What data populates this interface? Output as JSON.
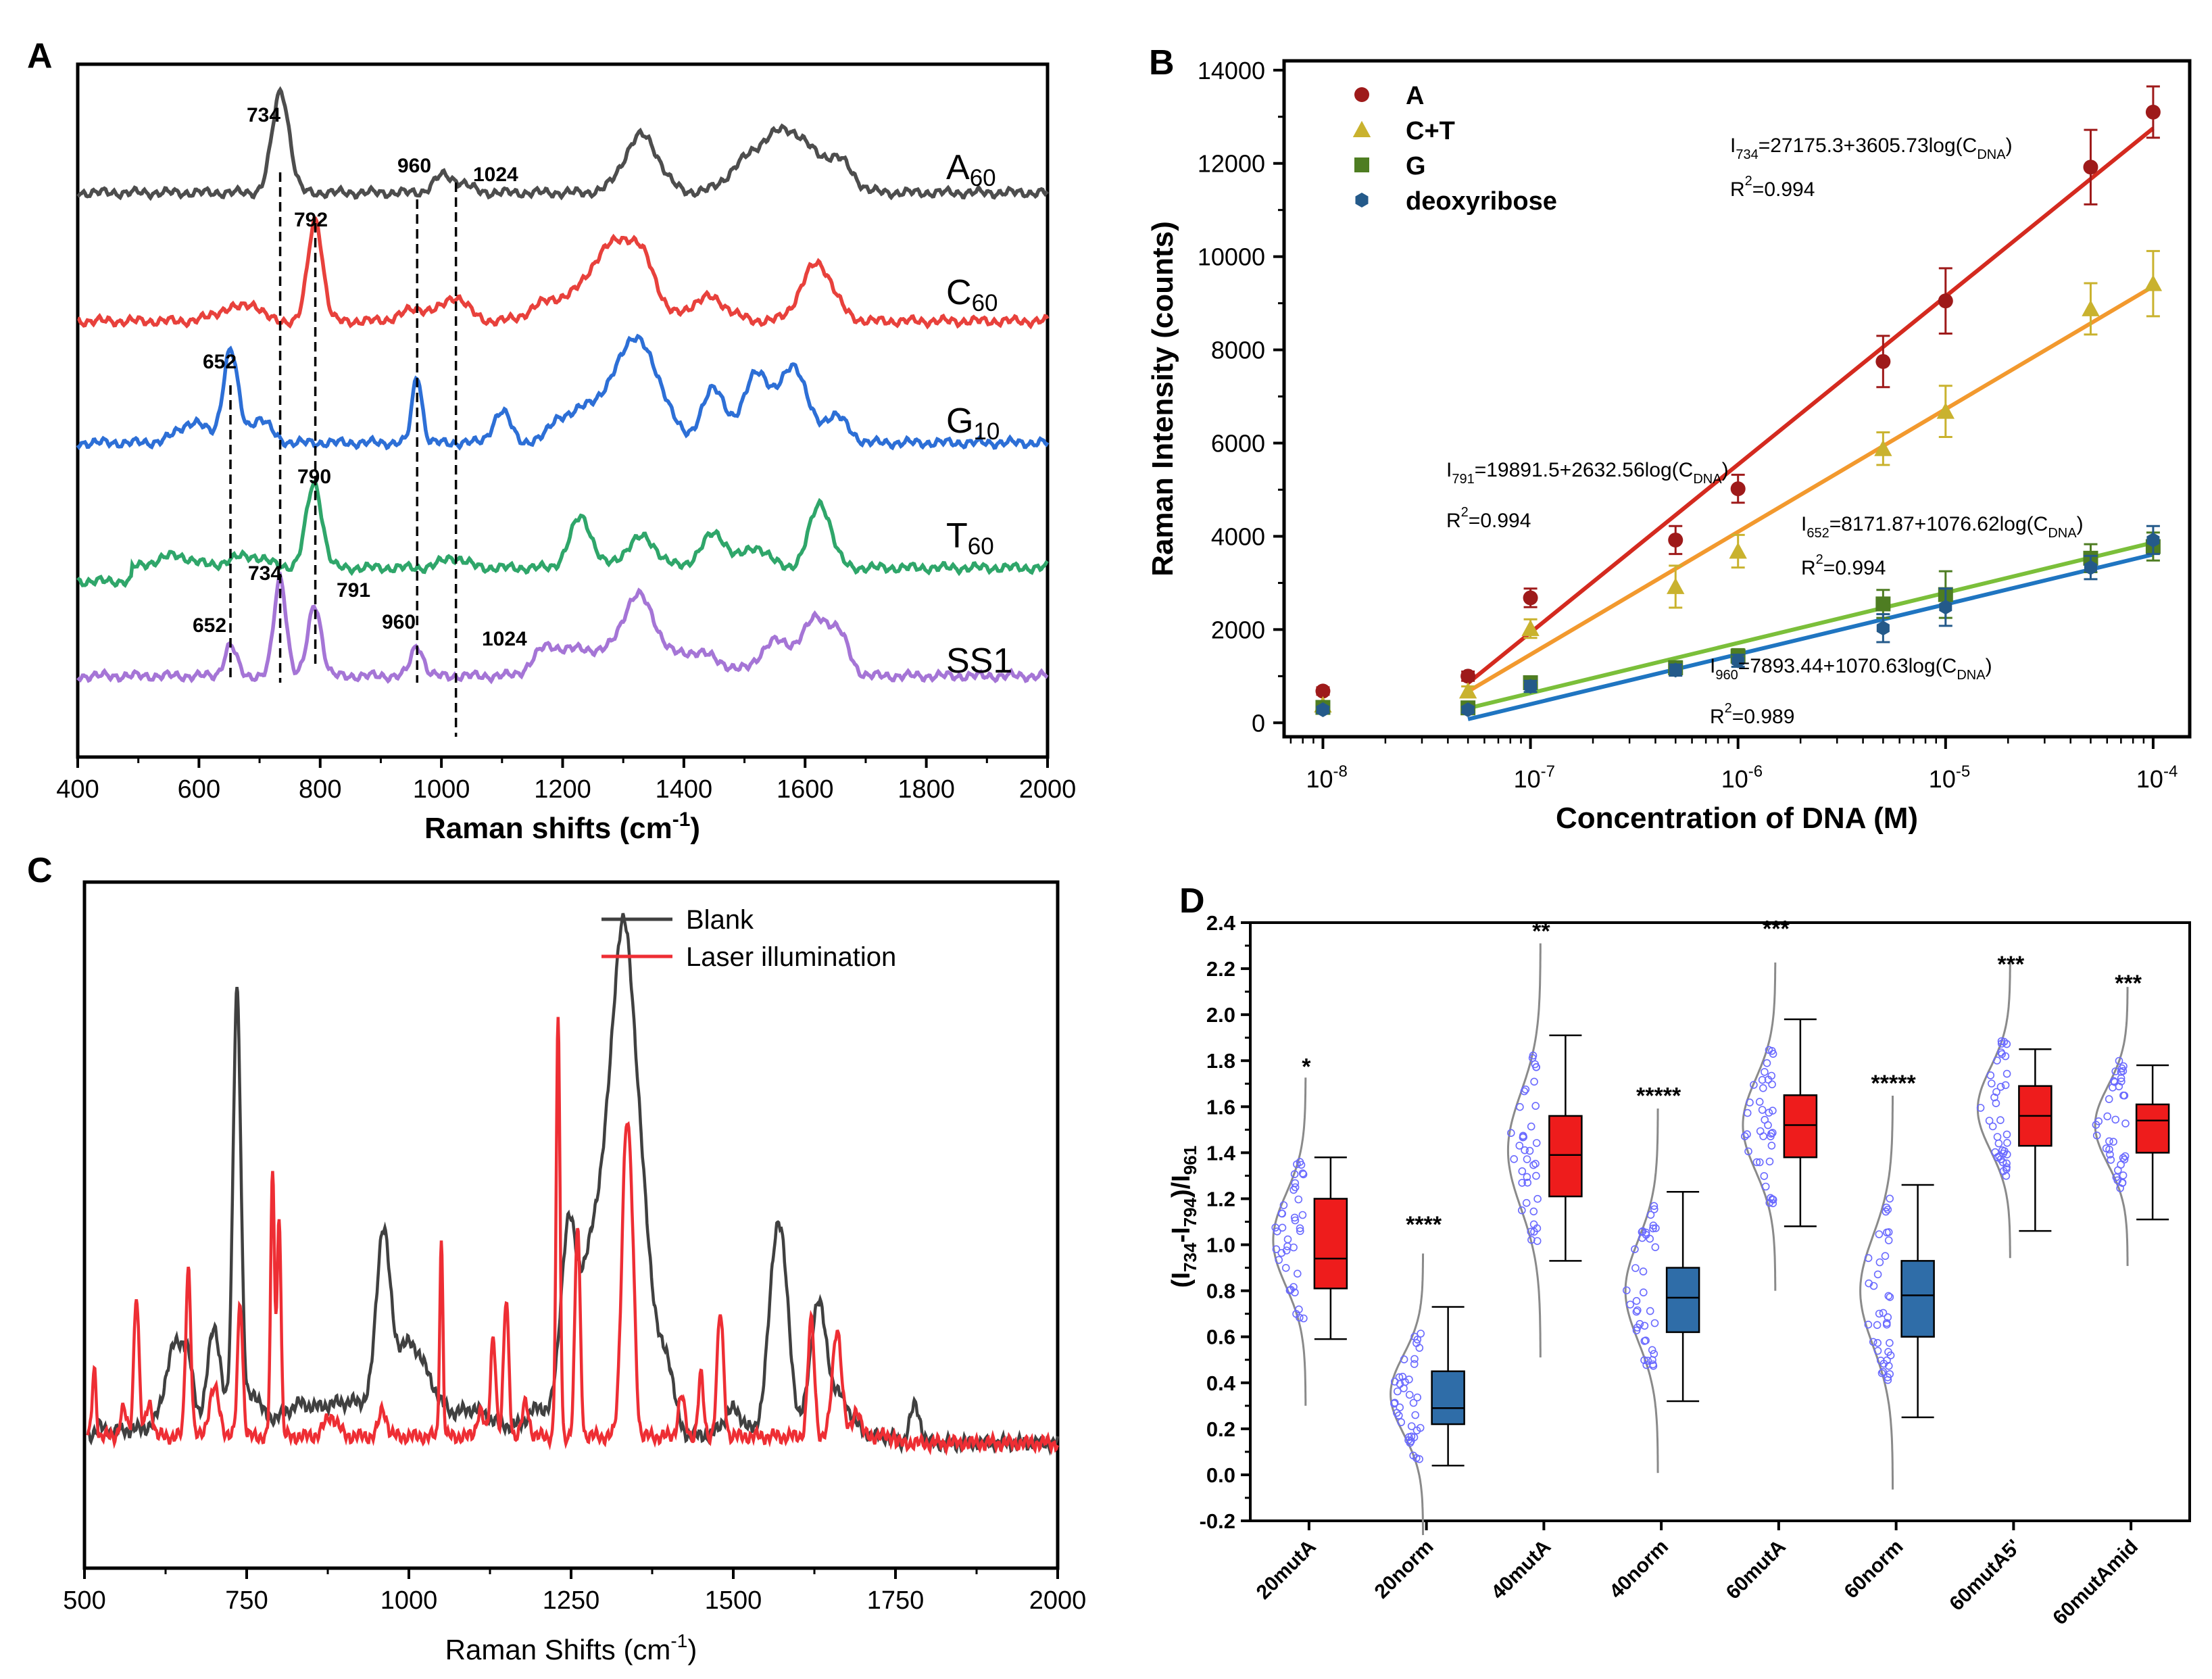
{
  "panels": {
    "A": {
      "letter": "A",
      "xlabel": "Raman shifts (cm",
      "xlabel_sup": "-1",
      "xlabel_end": ")",
      "xlim": [
        400,
        2000
      ],
      "xticks": [
        400,
        600,
        800,
        1000,
        1200,
        1400,
        1600,
        1800,
        2000
      ],
      "spectra": [
        {
          "name": "A",
          "sub": "60",
          "color": "#4d4d4d"
        },
        {
          "name": "C",
          "sub": "60",
          "color": "#e8413c"
        },
        {
          "name": "G",
          "sub": "10",
          "color": "#2d6fd6"
        },
        {
          "name": "T",
          "sub": "60",
          "color": "#2fa66a"
        },
        {
          "name": "SS1",
          "sub": "",
          "color": "#a575d6"
        }
      ],
      "peak_labels": [
        "734",
        "960",
        "1024",
        "792",
        "652",
        "790",
        "734",
        "791",
        "652",
        "960",
        "1024"
      ]
    },
    "B": {
      "letter": "B",
      "xlabel": "Concentration of DNA (M)",
      "ylabel": "Raman Intensity (counts)",
      "yticks": [
        0,
        2000,
        4000,
        6000,
        8000,
        10000,
        12000,
        14000
      ],
      "xtick_base": "10",
      "xtick_exps": [
        "-8",
        "-7",
        "-6",
        "-5",
        "-4"
      ],
      "legend": [
        {
          "name": "A",
          "color": "#9e1a1a",
          "marker": "circle"
        },
        {
          "name": "C+T",
          "color": "#c9b22e",
          "marker": "triangle"
        },
        {
          "name": "G",
          "color": "#4e7d22",
          "marker": "square"
        },
        {
          "name": "deoxyribose",
          "color": "#245a8a",
          "marker": "hexagon"
        }
      ],
      "fit_colors": [
        "#d42a1f",
        "#f2992e",
        "#7bbf3a",
        "#1f75c1"
      ],
      "equations": [
        {
          "pre": "I",
          "sub": "734",
          "mid": "=27175.3+3605.73log(C",
          "sub2": "DNA",
          "end": ")",
          "r2": "=0.994"
        },
        {
          "pre": "I",
          "sub": "791",
          "mid": "=19891.5+2632.56log(C",
          "sub2": "DNA",
          "end": ")",
          "r2": "=0.994"
        },
        {
          "pre": "I",
          "sub": "652",
          "mid": "=8171.87+1076.62log(C",
          "sub2": "DNA",
          "end": ")",
          "r2": "=0.994"
        },
        {
          "pre": "I",
          "sub": "960",
          "mid": "=7893.44+1070.63log(C",
          "sub2": "DNA",
          "end": ")",
          "r2": "=0.989"
        }
      ],
      "r2_prefix": "R",
      "r2_sup": "2"
    },
    "C": {
      "letter": "C",
      "xlabel": "Raman Shifts (cm",
      "xlabel_sup": "-1",
      "xlabel_end": ")",
      "xticks": [
        500,
        750,
        1000,
        1250,
        1500,
        1750,
        2000
      ],
      "xlim": [
        500,
        2000
      ],
      "legend": [
        {
          "name": "Blank",
          "color": "#404040"
        },
        {
          "name": "Laser illumination",
          "color": "#ee2e34"
        }
      ]
    },
    "D": {
      "letter": "D",
      "ylabel": "(I",
      "ylabel_sub1": "734",
      "ylabel_mid": "-I",
      "ylabel_sub2": "794",
      "ylabel_mid2": ")/I",
      "ylabel_sub3": "961",
      "yticks": [
        "-0.2",
        "0.0",
        "0.2",
        "0.4",
        "0.6",
        "0.8",
        "1.0",
        "1.2",
        "1.4",
        "1.6",
        "1.8",
        "2.0",
        "2.2",
        "2.4"
      ],
      "ylim": [
        -0.2,
        2.4
      ],
      "colors": {
        "mut": "#ee1c1c",
        "norm": "#2f6da8"
      }
    }
  },
  "chart_data": [
    {
      "type": "line",
      "panel": "A",
      "title": "",
      "xlabel": "Raman shifts (cm-1)",
      "ylabel": "",
      "xlim": [
        400,
        2000
      ],
      "series_names": [
        "A60",
        "C60",
        "G10",
        "T60",
        "SS1"
      ],
      "reference_peaks_cm-1": [
        652,
        734,
        790,
        792,
        960,
        1024
      ]
    },
    {
      "type": "scatter",
      "panel": "B",
      "xlabel": "Concentration of DNA (M)",
      "ylabel": "Raman Intensity (counts)",
      "xscale": "log",
      "xlim": [
        1e-08,
        0.0001
      ],
      "ylim": [
        -300,
        14200
      ],
      "x": [
        1e-08,
        5e-08,
        1e-07,
        5e-07,
        1e-06,
        5e-06,
        1e-05,
        5e-05,
        0.0001
      ],
      "series": [
        {
          "name": "A",
          "values": [
            680,
            1000,
            2680,
            3920,
            5020,
            7750,
            9050,
            11920,
            13100
          ],
          "errors": [
            80,
            100,
            200,
            300,
            300,
            550,
            700,
            800,
            550
          ],
          "fit": {
            "intercept": 27175.3,
            "slope": 3605.73,
            "r2": 0.994
          }
        },
        {
          "name": "C+T",
          "values": [
            380,
            680,
            2020,
            2920,
            3680,
            5880,
            6680,
            8880,
            9420
          ],
          "errors": [
            60,
            100,
            200,
            450,
            350,
            350,
            550,
            550,
            700
          ],
          "fit": {
            "intercept": 19891.5,
            "slope": 2632.56,
            "r2": 0.994
          }
        },
        {
          "name": "G",
          "values": [
            330,
            320,
            860,
            1180,
            1430,
            2550,
            2750,
            3530,
            3780
          ],
          "errors": [
            60,
            60,
            120,
            140,
            150,
            300,
            500,
            300,
            300
          ],
          "fit": {
            "intercept": 8171.87,
            "slope": 1076.62,
            "r2": 0.994
          }
        },
        {
          "name": "deoxyribose",
          "values": [
            280,
            280,
            780,
            1130,
            1330,
            2030,
            2480,
            3330,
            3920
          ],
          "errors": [
            60,
            60,
            120,
            120,
            130,
            300,
            400,
            250,
            300
          ],
          "fit": {
            "intercept": 7893.44,
            "slope": 1070.63,
            "r2": 0.989
          }
        }
      ]
    },
    {
      "type": "line",
      "panel": "C",
      "xlabel": "Raman Shifts (cm-1)",
      "ylabel": "",
      "xlim": [
        500,
        2000
      ],
      "series_names": [
        "Blank",
        "Laser illumination"
      ],
      "blank_peaks_cm-1": [
        735,
        960,
        1245,
        1330,
        1570,
        1630,
        1780
      ],
      "laser_peaks_cm-1": [
        515,
        580,
        660,
        745,
        790,
        800,
        1050,
        1150,
        1230,
        1260,
        1335,
        1480,
        1620,
        1660
      ]
    },
    {
      "type": "box",
      "panel": "D",
      "ylabel": "(I734-I794)/I961",
      "ylim": [
        -0.2,
        2.4
      ],
      "categories": [
        "20mutA",
        "20norm",
        "40mutA",
        "40norm",
        "60mutA",
        "60norm",
        "60mutA5'",
        "60mutAmid"
      ],
      "significance": [
        "*",
        "****",
        "**",
        "*****",
        "***",
        "*****",
        "***",
        "***"
      ],
      "group": [
        "mut",
        "norm",
        "mut",
        "norm",
        "mut",
        "norm",
        "mut",
        "mut"
      ],
      "q1": [
        0.81,
        0.22,
        1.21,
        0.62,
        1.38,
        0.6,
        1.43,
        1.4
      ],
      "median": [
        0.94,
        0.29,
        1.39,
        0.77,
        1.52,
        0.78,
        1.56,
        1.54
      ],
      "q3": [
        1.2,
        0.45,
        1.56,
        0.9,
        1.65,
        0.93,
        1.69,
        1.61
      ],
      "whisker_low": [
        0.59,
        0.04,
        0.93,
        0.32,
        1.08,
        0.25,
        1.06,
        1.11
      ],
      "whisker_high": [
        1.38,
        0.73,
        1.91,
        1.23,
        1.98,
        1.26,
        1.85,
        1.78
      ],
      "mean": [
        1.02,
        0.35,
        1.41,
        0.8,
        1.52,
        0.8,
        1.59,
        1.52
      ],
      "sd": [
        0.2,
        0.17,
        0.25,
        0.22,
        0.2,
        0.24,
        0.18,
        0.17
      ]
    }
  ]
}
